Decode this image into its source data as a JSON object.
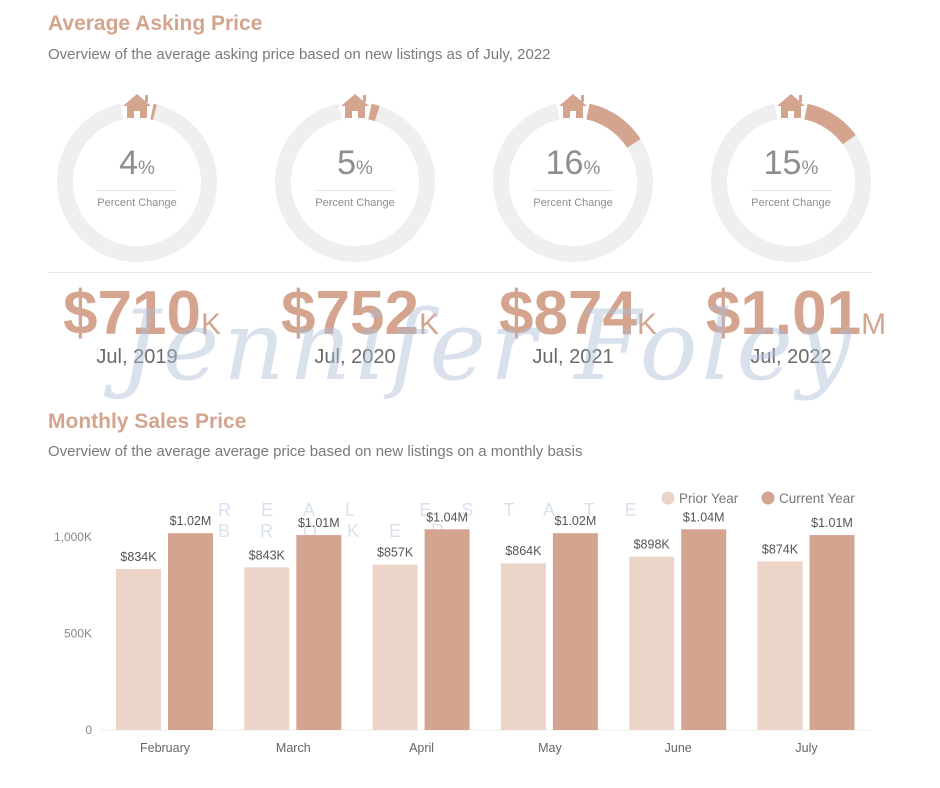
{
  "section1": {
    "title": "Average Asking Price",
    "subtitle": "Overview of the average asking price based on new listings as of July, 2022"
  },
  "kpis": [
    {
      "pct": 4,
      "pct_sym": "%",
      "label": "Percent Change",
      "value": "$710",
      "unit": "K",
      "period": "Jul, 2019"
    },
    {
      "pct": 5,
      "pct_sym": "%",
      "label": "Percent Change",
      "value": "$752",
      "unit": "K",
      "period": "Jul, 2020"
    },
    {
      "pct": 16,
      "pct_sym": "%",
      "label": "Percent Change",
      "value": "$874",
      "unit": "K",
      "period": "Jul, 2021"
    },
    {
      "pct": 15,
      "pct_sym": "%",
      "label": "Percent Change",
      "value": "$1.01",
      "unit": "M",
      "period": "Jul, 2022"
    }
  ],
  "icon": "house-icon",
  "section2": {
    "title": "Monthly Sales Price",
    "subtitle": "Overview of the average average price based on new listings on a monthly basis"
  },
  "watermark": {
    "name": "Jennifer Foley",
    "tagline": "REAL ESTATE BROKER"
  },
  "colors": {
    "accent": "#d4a48e",
    "prior": "#ecd4c8",
    "current": "#d3a591",
    "track": "#efefef"
  },
  "chart_data": {
    "type": "bar",
    "categories": [
      "February",
      "March",
      "April",
      "May",
      "June",
      "July"
    ],
    "series": [
      {
        "name": "Prior Year",
        "values": [
          834,
          843,
          857,
          864,
          898,
          874
        ],
        "labels": [
          "$834K",
          "$843K",
          "$857K",
          "$864K",
          "$898K",
          "$874K"
        ]
      },
      {
        "name": "Current Year",
        "values": [
          1020,
          1010,
          1040,
          1020,
          1040,
          1010
        ],
        "labels": [
          "$1.02M",
          "$1.01M",
          "$1.04M",
          "$1.02M",
          "$1.04M",
          "$1.01M"
        ]
      }
    ],
    "yticks": [
      {
        "v": 0,
        "label": "0"
      },
      {
        "v": 500,
        "label": "500K"
      },
      {
        "v": 1000,
        "label": "1,000K"
      }
    ],
    "ylim": [
      0,
      1000
    ],
    "legend": "top-right"
  }
}
